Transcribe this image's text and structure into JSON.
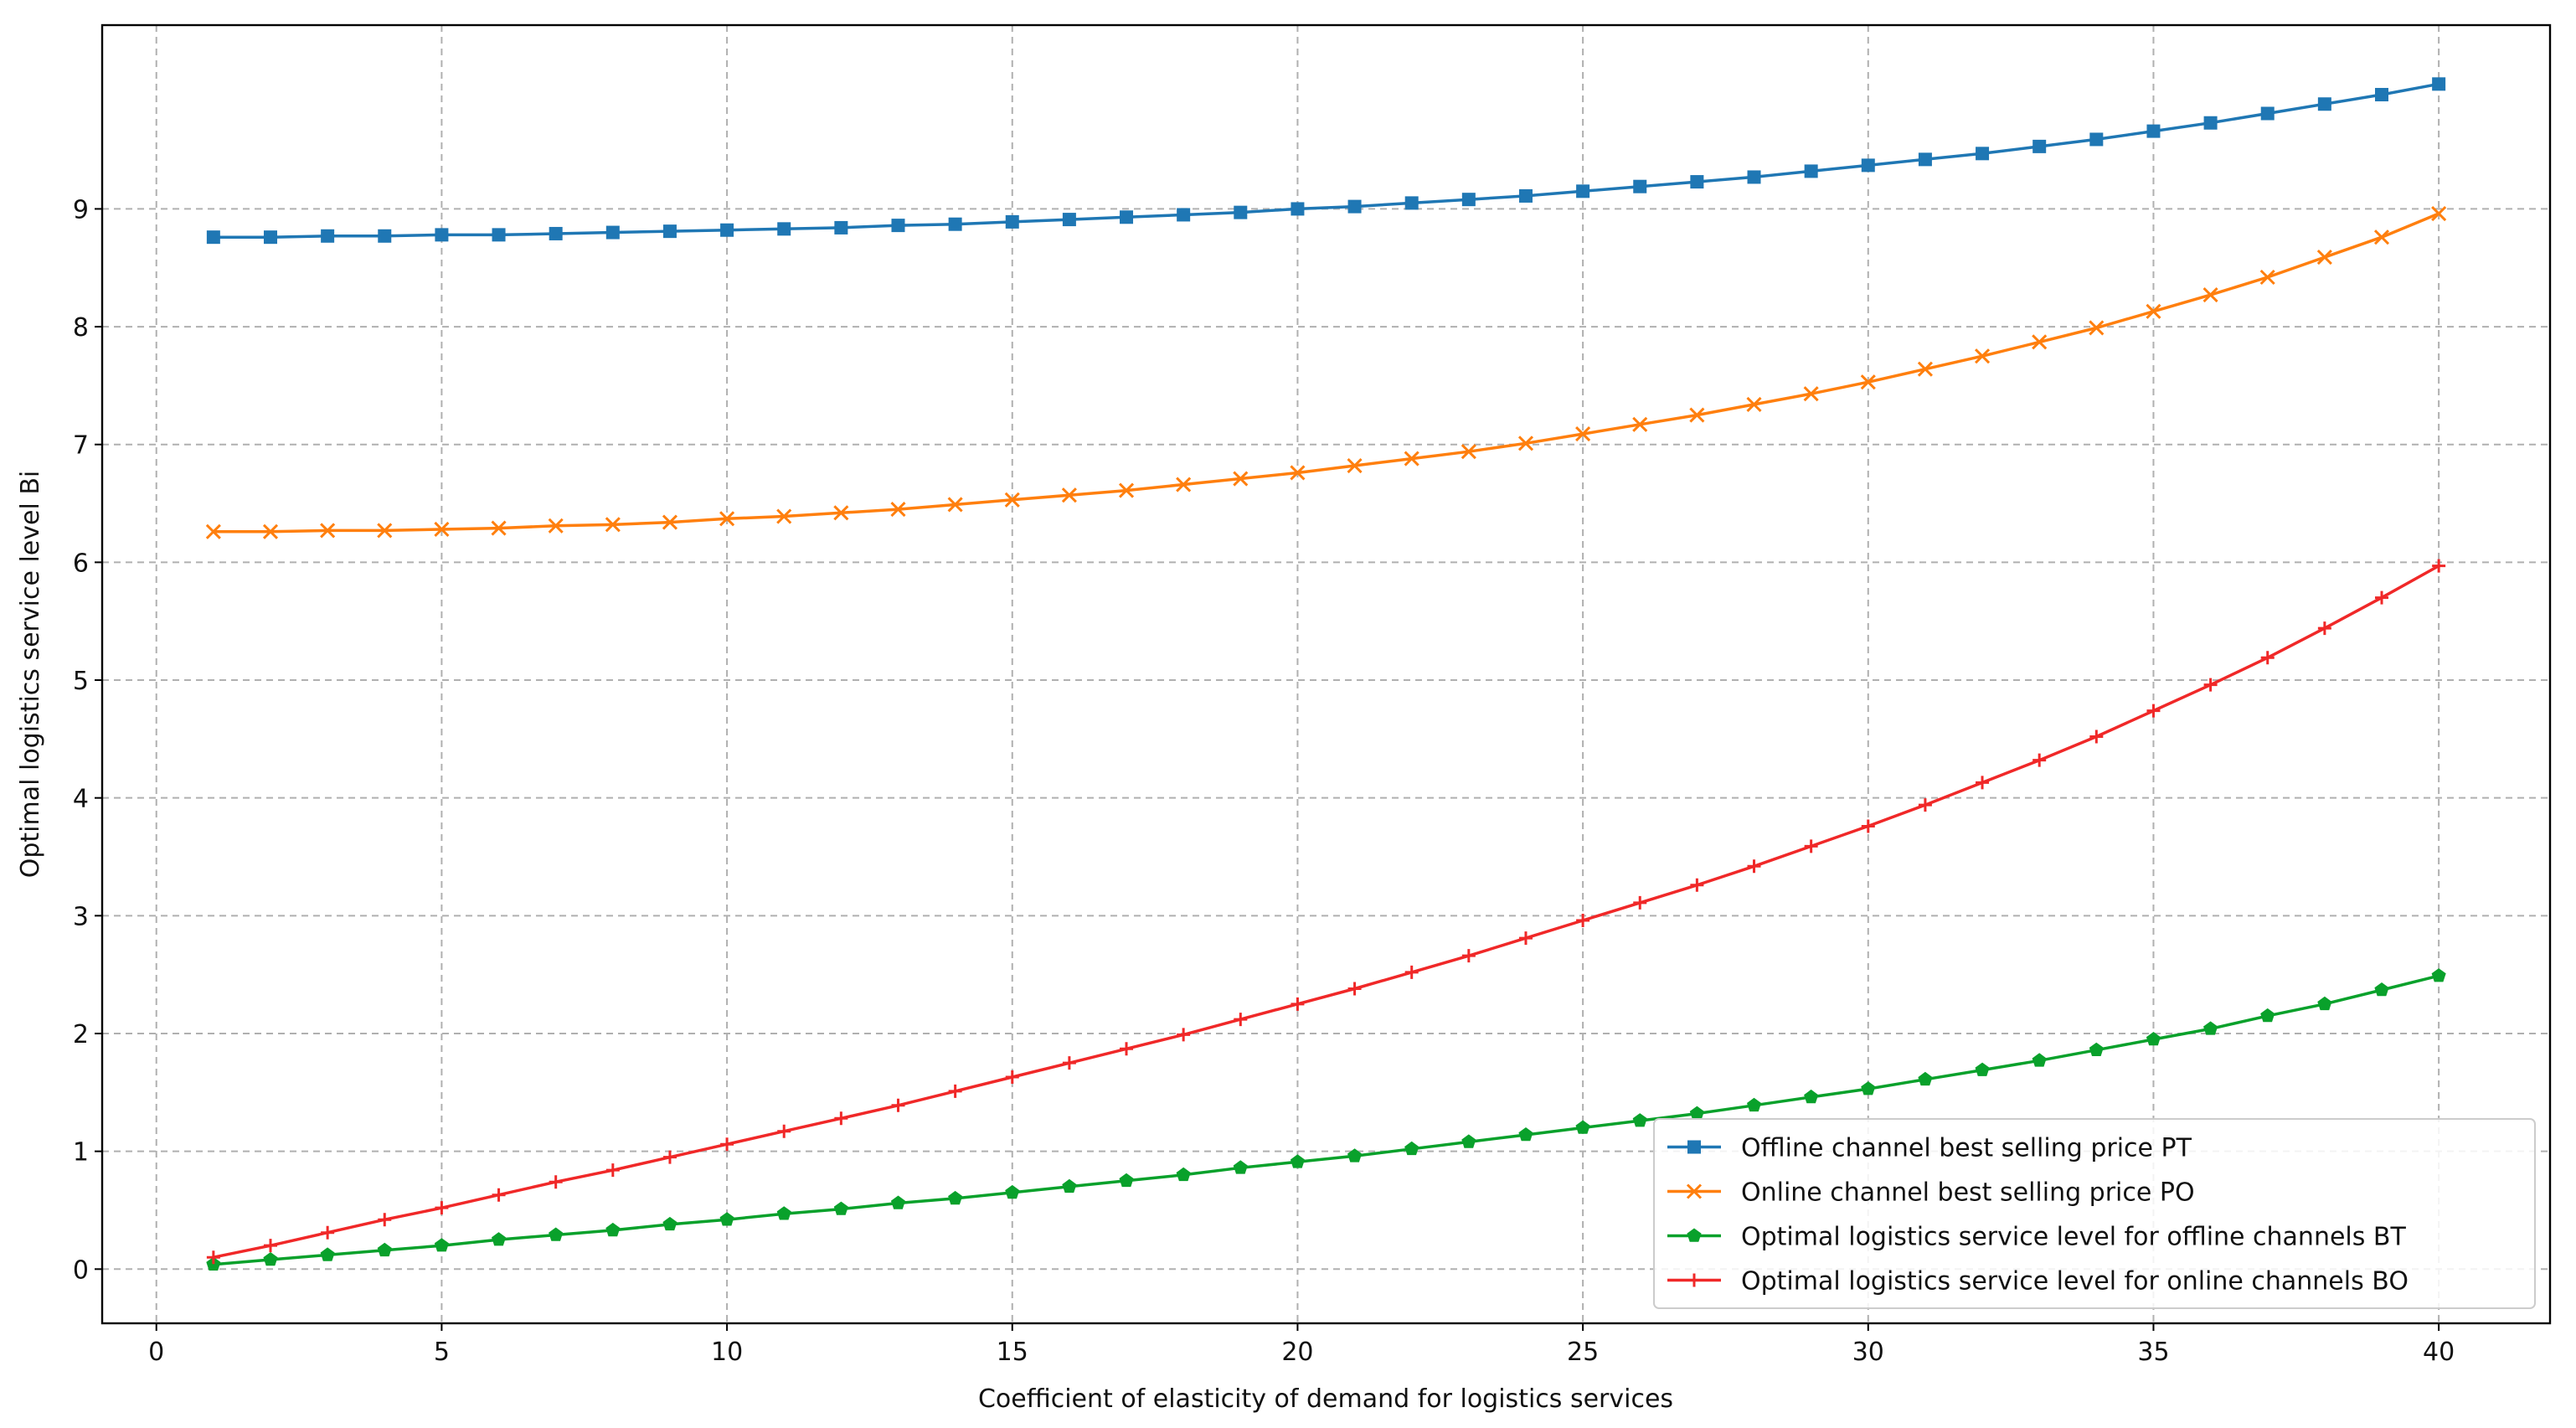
{
  "chart_data": {
    "type": "line",
    "xlabel": "Coefficient of elasticity of demand for logistics services",
    "ylabel": "Optimal logistics service level Bi",
    "x": [
      1,
      2,
      3,
      4,
      5,
      6,
      7,
      8,
      9,
      10,
      11,
      12,
      13,
      14,
      15,
      16,
      17,
      18,
      19,
      20,
      21,
      22,
      23,
      24,
      25,
      26,
      27,
      28,
      29,
      30,
      31,
      32,
      33,
      34,
      35,
      36,
      37,
      38,
      39,
      40
    ],
    "series": [
      {
        "name": "Offline channel best selling price PT",
        "color": "#1f77b4",
        "marker": "square",
        "values": [
          8.76,
          8.76,
          8.77,
          8.77,
          8.78,
          8.78,
          8.79,
          8.8,
          8.81,
          8.82,
          8.83,
          8.84,
          8.86,
          8.87,
          8.89,
          8.91,
          8.93,
          8.95,
          8.97,
          9.0,
          9.02,
          9.05,
          9.08,
          9.11,
          9.15,
          9.19,
          9.23,
          9.27,
          9.32,
          9.37,
          9.42,
          9.47,
          9.53,
          9.59,
          9.66,
          9.73,
          9.81,
          9.89,
          9.97,
          10.06
        ]
      },
      {
        "name": "Online channel best selling price PO",
        "color": "#ff7f0e",
        "marker": "x",
        "values": [
          6.26,
          6.26,
          6.27,
          6.27,
          6.28,
          6.29,
          6.31,
          6.32,
          6.34,
          6.37,
          6.39,
          6.42,
          6.45,
          6.49,
          6.53,
          6.57,
          6.61,
          6.66,
          6.71,
          6.76,
          6.82,
          6.88,
          6.94,
          7.01,
          7.09,
          7.17,
          7.25,
          7.34,
          7.43,
          7.53,
          7.64,
          7.75,
          7.87,
          7.99,
          8.13,
          8.27,
          8.42,
          8.59,
          8.76,
          8.96
        ]
      },
      {
        "name": "Optimal logistics service level for offline channels BT",
        "color": "#09a12b",
        "marker": "pentagon",
        "values": [
          0.04,
          0.08,
          0.12,
          0.16,
          0.2,
          0.25,
          0.29,
          0.33,
          0.38,
          0.42,
          0.47,
          0.51,
          0.56,
          0.6,
          0.65,
          0.7,
          0.75,
          0.8,
          0.86,
          0.91,
          0.96,
          1.02,
          1.08,
          1.14,
          1.2,
          1.26,
          1.32,
          1.39,
          1.46,
          1.53,
          1.61,
          1.69,
          1.77,
          1.86,
          1.95,
          2.04,
          2.15,
          2.25,
          2.37,
          2.49
        ]
      },
      {
        "name": "Optimal logistics service level for online channels BO",
        "color": "#f02828",
        "marker": "plus",
        "values": [
          0.1,
          0.2,
          0.31,
          0.42,
          0.52,
          0.63,
          0.74,
          0.84,
          0.95,
          1.06,
          1.17,
          1.28,
          1.39,
          1.51,
          1.63,
          1.75,
          1.87,
          1.99,
          2.12,
          2.25,
          2.38,
          2.52,
          2.66,
          2.81,
          2.96,
          3.11,
          3.26,
          3.42,
          3.59,
          3.76,
          3.94,
          4.13,
          4.32,
          4.52,
          4.74,
          4.96,
          5.19,
          5.44,
          5.7,
          5.97
        ]
      }
    ],
    "xlim": [
      -0.95,
      41.95
    ],
    "ylim": [
      -0.46,
      10.56
    ],
    "xticks": [
      0,
      5,
      10,
      15,
      20,
      25,
      30,
      35,
      40
    ],
    "yticks": [
      0,
      1,
      2,
      3,
      4,
      5,
      6,
      7,
      8,
      9
    ],
    "grid": true,
    "legend": "lower right"
  }
}
